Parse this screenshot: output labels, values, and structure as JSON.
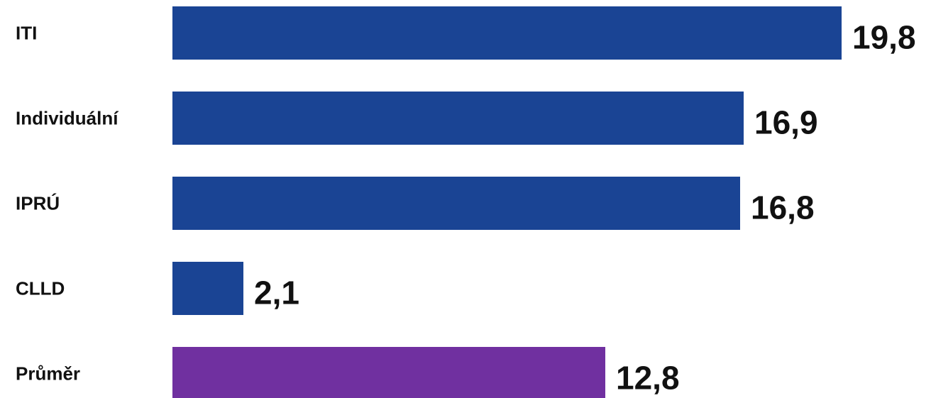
{
  "chart_data": {
    "type": "bar",
    "orientation": "horizontal",
    "categories": [
      "ITI",
      "Individuální",
      "IPRÚ",
      "CLLD",
      "Průměr"
    ],
    "values": [
      19.8,
      16.9,
      16.8,
      2.1,
      12.8
    ],
    "value_labels": [
      "19,8",
      "16,9",
      "16,8",
      "2,1",
      "12,8"
    ],
    "bar_colors": [
      "#1a4494",
      "#1a4494",
      "#1a4494",
      "#1a4494",
      "#7030a0"
    ],
    "xlim": [
      0,
      19.8
    ],
    "grid": false,
    "title": "",
    "xlabel": "",
    "ylabel": ""
  }
}
